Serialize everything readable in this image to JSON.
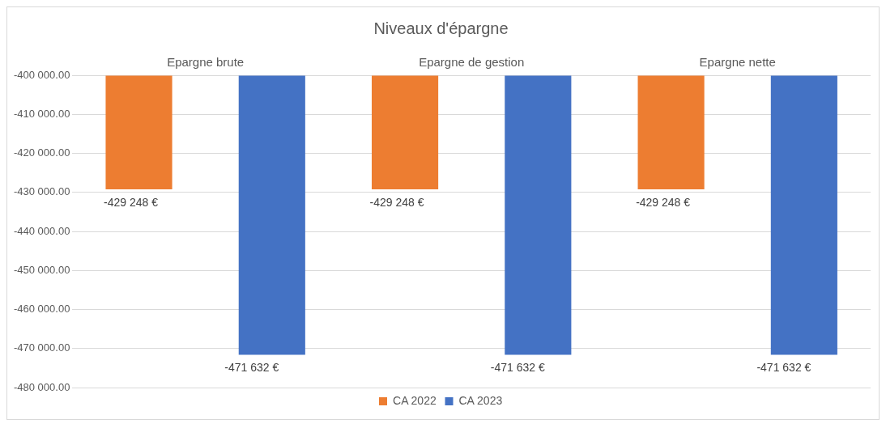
{
  "chart_data": {
    "type": "bar",
    "title": "Niveaux d'épargne",
    "categories": [
      "Epargne brute",
      "Epargne de gestion",
      "Epargne nette"
    ],
    "series": [
      {
        "name": "CA 2022",
        "color": "#ed7d31",
        "values": [
          -429248,
          -429248,
          -429248
        ],
        "value_labels": [
          "-429 248 €",
          "-429 248 €",
          "-429 248 €"
        ]
      },
      {
        "name": "CA 2023",
        "color": "#4472c4",
        "values": [
          -471632,
          -471632,
          -471632
        ],
        "value_labels": [
          "-471 632 €",
          "-471 632 €",
          "-471 632 €"
        ]
      }
    ],
    "ylim": [
      -480000,
      -400000
    ],
    "yticks": [
      {
        "value": -400000,
        "label": "-400 000.00"
      },
      {
        "value": -410000,
        "label": "-410 000.00"
      },
      {
        "value": -420000,
        "label": "-420 000.00"
      },
      {
        "value": -430000,
        "label": "-430 000.00"
      },
      {
        "value": -440000,
        "label": "-440 000.00"
      },
      {
        "value": -450000,
        "label": "-450 000.00"
      },
      {
        "value": -460000,
        "label": "-460 000.00"
      },
      {
        "value": -470000,
        "label": "-470 000.00"
      },
      {
        "value": -480000,
        "label": "-480 000.00"
      }
    ],
    "grid": "y",
    "legend": "bottom"
  }
}
